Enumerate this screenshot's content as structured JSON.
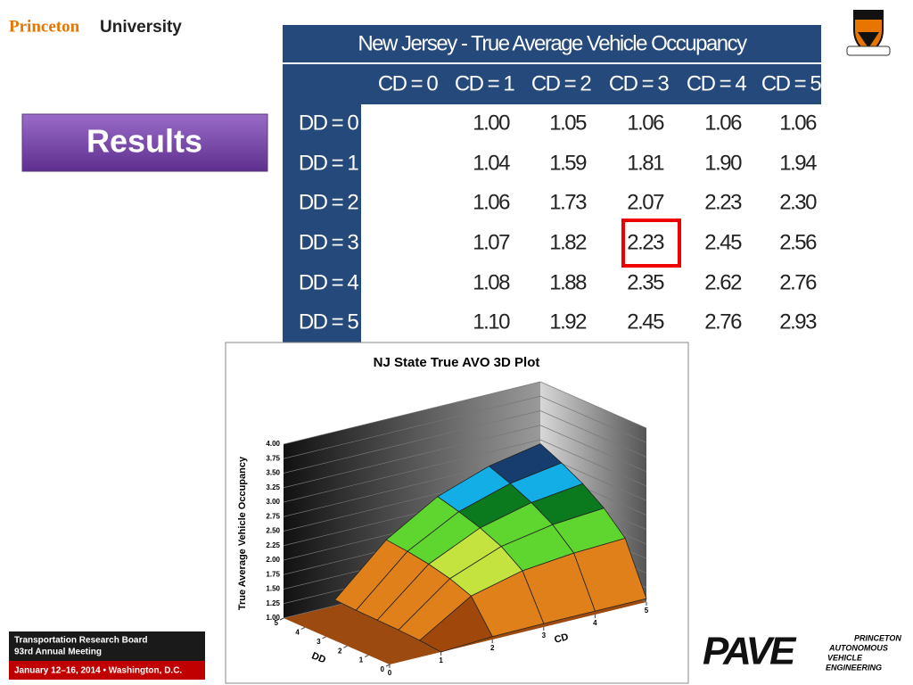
{
  "header": {
    "brand_first": "Princeton",
    "brand_second": "University"
  },
  "section_button": "Results",
  "table": {
    "title": "New Jersey - True Average Vehicle Occupancy",
    "columns": [
      "CD = 0",
      "CD = 1",
      "CD = 2",
      "CD = 3",
      "CD = 4",
      "CD = 5"
    ],
    "rows": [
      {
        "label": "DD = 0",
        "values": [
          null,
          "1.00",
          "1.05",
          "1.06",
          "1.06",
          "1.06"
        ]
      },
      {
        "label": "DD = 1",
        "values": [
          null,
          "1.04",
          "1.59",
          "1.81",
          "1.90",
          "1.94"
        ]
      },
      {
        "label": "DD = 2",
        "values": [
          null,
          "1.06",
          "1.73",
          "2.07",
          "2.23",
          "2.30"
        ]
      },
      {
        "label": "DD = 3",
        "values": [
          null,
          "1.07",
          "1.82",
          "2.23",
          "2.45",
          "2.56"
        ]
      },
      {
        "label": "DD = 4",
        "values": [
          null,
          "1.08",
          "1.88",
          "2.35",
          "2.62",
          "2.76"
        ]
      },
      {
        "label": "DD = 5",
        "values": [
          null,
          "1.10",
          "1.92",
          "2.45",
          "2.76",
          "2.93"
        ]
      }
    ]
  },
  "plot": {
    "title": "NJ State True AVO 3D Plot",
    "y_label": "True Average Vehicle Occupancy",
    "x_label": "CD",
    "z_label": "DD",
    "yticks": [
      {
        "value": 1,
        "label": "1.00"
      },
      {
        "value": 1.25,
        "label": "1.25"
      },
      {
        "value": 1.5,
        "label": "1.50"
      },
      {
        "value": 1.75,
        "label": "1.75"
      },
      {
        "value": 2,
        "label": "2.00"
      },
      {
        "value": 2.25,
        "label": "2.25"
      },
      {
        "value": 2.5,
        "label": "2.50"
      },
      {
        "value": 2.75,
        "label": "2.75"
      },
      {
        "value": 3,
        "label": "3.00"
      },
      {
        "value": 3.25,
        "label": "3.25"
      },
      {
        "value": 3.5,
        "label": "3.50"
      },
      {
        "value": 3.75,
        "label": "3.75"
      },
      {
        "value": 4,
        "label": "4.00"
      }
    ],
    "xticks": [
      0,
      1,
      2,
      3,
      4,
      5
    ],
    "zticks": [
      0,
      1,
      2,
      3,
      4,
      5
    ]
  },
  "footer": {
    "trb_line1": "Transportation Research Board",
    "trb_line2": "93rd Annual Meeting",
    "trb_date": "January 12–16, 2014 • Washington, D.C.",
    "pave": "PAVE",
    "pave_lines": [
      "PRINCETON",
      "AUTONOMOUS",
      "VEHICLE",
      "ENGINEERING"
    ]
  }
}
